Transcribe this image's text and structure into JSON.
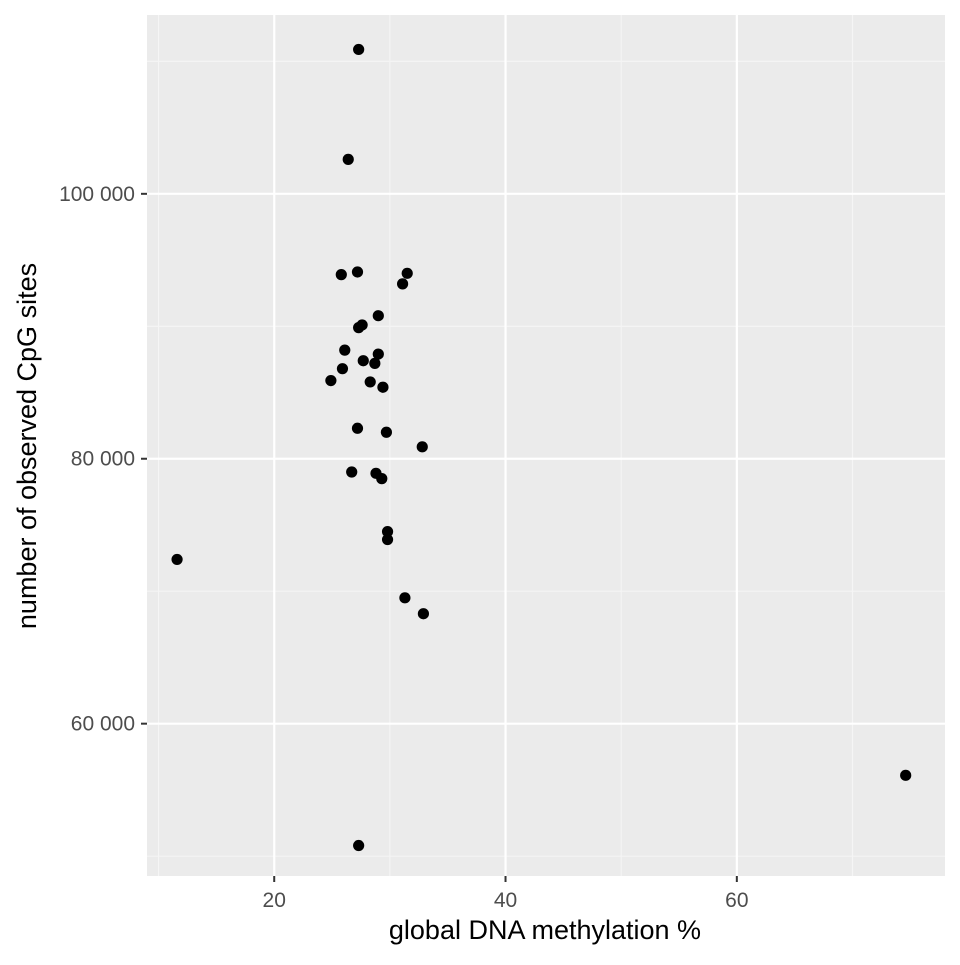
{
  "chart_data": {
    "type": "scatter",
    "title": "",
    "xlabel": "global DNA methylation %",
    "ylabel": "number of observed CpG sites",
    "xlim": [
      9.0,
      78.0
    ],
    "ylim": [
      48500,
      113500
    ],
    "x_ticks": [
      20,
      40,
      60
    ],
    "x_tick_labels": [
      "20",
      "40",
      "60"
    ],
    "y_ticks": [
      60000,
      80000,
      100000
    ],
    "y_tick_labels": [
      "60 000",
      "80 000",
      "100 000"
    ],
    "x_minor_ticks": [
      10,
      30,
      50,
      70
    ],
    "y_minor_ticks": [
      50000,
      70000,
      90000,
      110000
    ],
    "grid": true,
    "legend": "none",
    "colors": {
      "panel_background": "#ebebeb",
      "grid_major": "#ffffff",
      "grid_minor": "#f5f5f5",
      "point": "#000000",
      "tick_label": "#4d4d4d",
      "tick_mark": "#333333",
      "axis_title": "#000000"
    },
    "points": [
      {
        "x": 27.3,
        "y": 110900
      },
      {
        "x": 26.4,
        "y": 102600
      },
      {
        "x": 25.8,
        "y": 93900
      },
      {
        "x": 27.2,
        "y": 94100
      },
      {
        "x": 31.5,
        "y": 94000
      },
      {
        "x": 31.1,
        "y": 93200
      },
      {
        "x": 29.0,
        "y": 90800
      },
      {
        "x": 27.3,
        "y": 89900
      },
      {
        "x": 27.6,
        "y": 90100
      },
      {
        "x": 26.1,
        "y": 88200
      },
      {
        "x": 29.0,
        "y": 87900
      },
      {
        "x": 27.7,
        "y": 87400
      },
      {
        "x": 28.7,
        "y": 87200
      },
      {
        "x": 25.9,
        "y": 86800
      },
      {
        "x": 24.9,
        "y": 85900
      },
      {
        "x": 28.3,
        "y": 85800
      },
      {
        "x": 29.4,
        "y": 85400
      },
      {
        "x": 27.2,
        "y": 82300
      },
      {
        "x": 29.7,
        "y": 82000
      },
      {
        "x": 32.8,
        "y": 80900
      },
      {
        "x": 26.7,
        "y": 79000
      },
      {
        "x": 28.8,
        "y": 78900
      },
      {
        "x": 29.3,
        "y": 78500
      },
      {
        "x": 29.8,
        "y": 74500
      },
      {
        "x": 29.8,
        "y": 73900
      },
      {
        "x": 11.6,
        "y": 72400
      },
      {
        "x": 31.3,
        "y": 69500
      },
      {
        "x": 32.9,
        "y": 68300
      },
      {
        "x": 74.6,
        "y": 56100
      },
      {
        "x": 27.3,
        "y": 50800
      }
    ]
  }
}
